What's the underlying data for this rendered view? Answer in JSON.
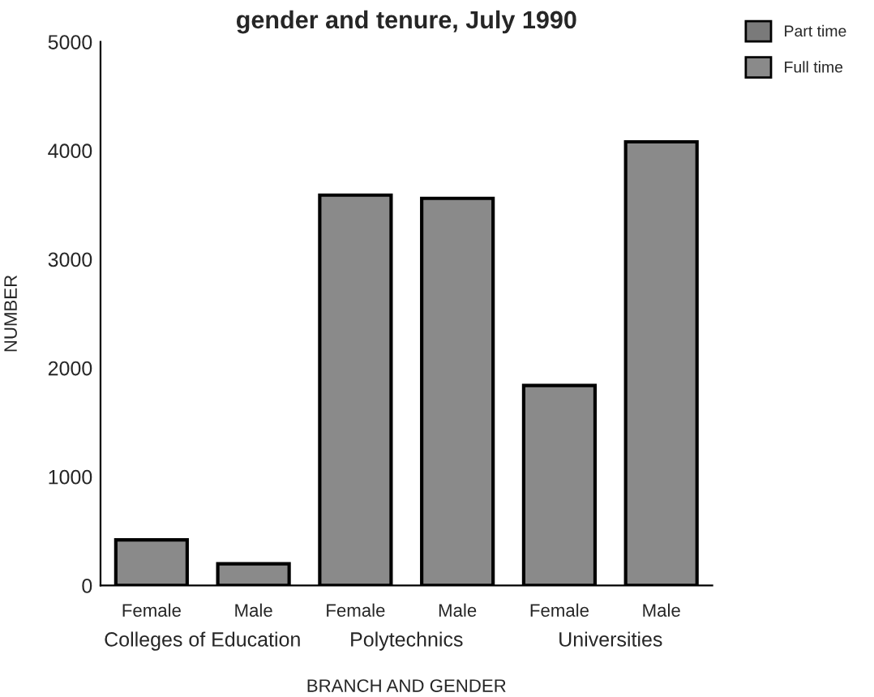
{
  "chart_data": {
    "type": "bar",
    "title": "gender and tenure, July 1990",
    "categories": [
      "Female",
      "Male",
      "Female",
      "Male",
      "Female",
      "Male"
    ],
    "series": [
      {
        "name": "Full time",
        "color": "#8a8a8a",
        "values": [
          420,
          200,
          3590,
          3560,
          1840,
          4080
        ]
      },
      {
        "name": "Part time",
        "color": "#7a7a7a",
        "values": [
          null,
          null,
          null,
          null,
          null,
          null
        ]
      }
    ],
    "xlabel": "BRANCH AND GENDER",
    "ylabel": "NUMBER",
    "ylim": [
      0,
      5000
    ],
    "yticks": [
      0,
      1000,
      2000,
      3000,
      4000,
      5000
    ],
    "annotations": [
      "Colleges of Education",
      "Polytechnics",
      "Universities"
    ],
    "grid": false,
    "legend": "top right"
  }
}
